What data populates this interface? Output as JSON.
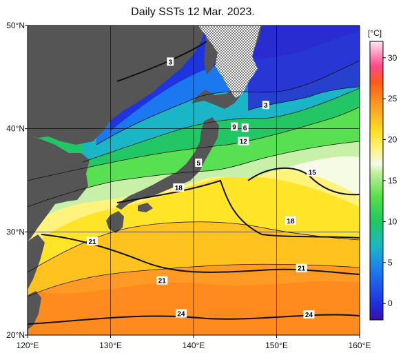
{
  "title": "Daily SSTs 12 Mar. 2023.",
  "map": {
    "lon_range": [
      120,
      160
    ],
    "lat_range": [
      20,
      50
    ],
    "lon_ticks": [
      {
        "value": 120,
        "label": "120°E"
      },
      {
        "value": 130,
        "label": "130°E"
      },
      {
        "value": 140,
        "label": "140°E"
      },
      {
        "value": 150,
        "label": "150°E"
      },
      {
        "value": 160,
        "label": "160°E"
      }
    ],
    "lat_ticks": [
      {
        "value": 20,
        "label": "20°N"
      },
      {
        "value": 30,
        "label": "30°N"
      },
      {
        "value": 40,
        "label": "40°N"
      },
      {
        "value": 50,
        "label": "50°N"
      }
    ],
    "land_color": "#555555",
    "sea_ice_pattern": "dotted"
  },
  "colorbar": {
    "unit_label": "[°C]",
    "min": -2,
    "max": 32,
    "ticks": [
      0,
      5,
      10,
      15,
      20,
      25,
      30
    ],
    "stops": [
      {
        "t": -2,
        "color": "#3a0fa8"
      },
      {
        "t": 0,
        "color": "#1e2fe0"
      },
      {
        "t": 4,
        "color": "#1c7af0"
      },
      {
        "t": 7,
        "color": "#1ab8c8"
      },
      {
        "t": 10,
        "color": "#20c860"
      },
      {
        "t": 13,
        "color": "#54e04a"
      },
      {
        "t": 16,
        "color": "#c4f0a0"
      },
      {
        "t": 17,
        "color": "#f4f8e8"
      },
      {
        "t": 19,
        "color": "#fff27a"
      },
      {
        "t": 21,
        "color": "#ffe020"
      },
      {
        "t": 24,
        "color": "#ffa020"
      },
      {
        "t": 27,
        "color": "#ff5a1a"
      },
      {
        "t": 29,
        "color": "#ff4a8a"
      },
      {
        "t": 32,
        "color": "#ffe6f6"
      }
    ]
  },
  "contour_labels": [
    {
      "text": "3",
      "lon": 137.2,
      "lat": 46.5
    },
    {
      "text": "3",
      "lon": 148.7,
      "lat": 42.3
    },
    {
      "text": "9",
      "lon": 144.9,
      "lat": 40.2
    },
    {
      "text": "6",
      "lon": 146.2,
      "lat": 40.1
    },
    {
      "text": "12",
      "lon": 146.0,
      "lat": 38.8
    },
    {
      "text": "5",
      "lon": 140.6,
      "lat": 36.7
    },
    {
      "text": "15",
      "lon": 154.3,
      "lat": 35.8
    },
    {
      "text": "18",
      "lon": 138.2,
      "lat": 34.3
    },
    {
      "text": "18",
      "lon": 151.7,
      "lat": 31.1
    },
    {
      "text": "21",
      "lon": 127.8,
      "lat": 29.1
    },
    {
      "text": "21",
      "lon": 153.0,
      "lat": 26.5
    },
    {
      "text": "21",
      "lon": 136.2,
      "lat": 25.3
    },
    {
      "text": "24",
      "lon": 138.5,
      "lat": 22.1
    },
    {
      "text": "24",
      "lon": 153.9,
      "lat": 22.0
    }
  ]
}
